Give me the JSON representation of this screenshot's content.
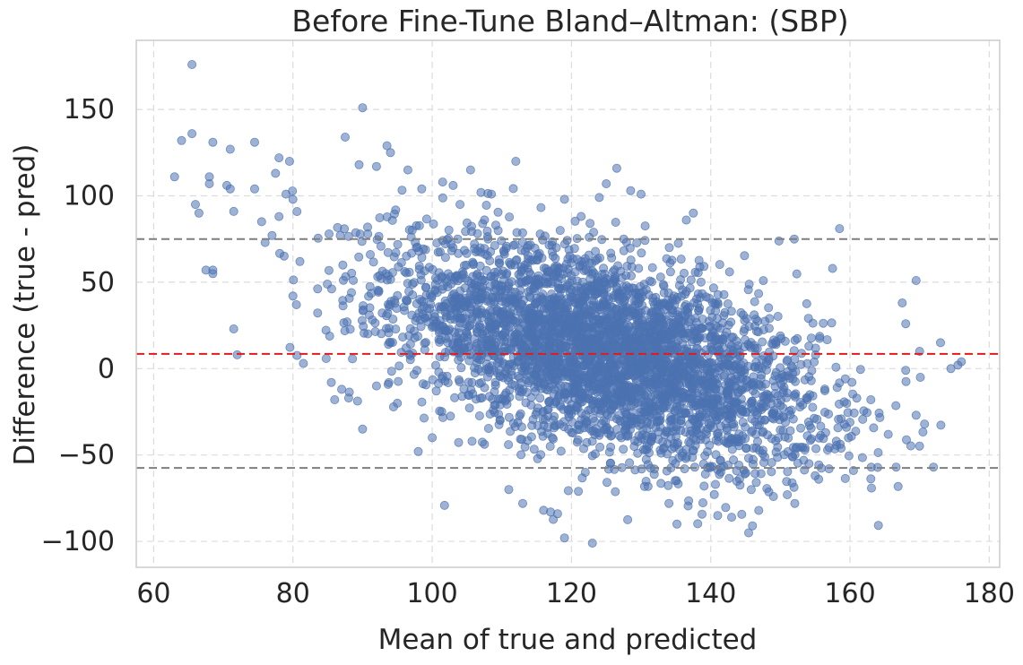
{
  "chart_data": {
    "type": "scatter",
    "title": "Before Fine-Tune Bland–Altman: (SBP)",
    "xlabel": "Mean of true and predicted",
    "ylabel": "Difference (true - pred)",
    "xlim": [
      57.5,
      181.5
    ],
    "ylim": [
      -115,
      190
    ],
    "xticks": [
      60,
      80,
      100,
      120,
      140,
      160,
      180
    ],
    "yticks": [
      -100,
      -50,
      0,
      50,
      100,
      150
    ],
    "xtick_labels": [
      "60",
      "80",
      "100",
      "120",
      "140",
      "160",
      "180"
    ],
    "ytick_labels": [
      "−100",
      "−50",
      "0",
      "50",
      "100",
      "150"
    ],
    "grid": true,
    "reference_lines": [
      {
        "name": "mean-bias",
        "y": 8.5,
        "color": "#e31a1c",
        "style": "dashed"
      },
      {
        "name": "upper-limit-of-agreement",
        "y": 75,
        "color": "#7f7f7f",
        "style": "dashed"
      },
      {
        "name": "lower-limit-of-agreement",
        "y": -57.5,
        "color": "#7f7f7f",
        "style": "dashed"
      }
    ],
    "series": [
      {
        "name": "samples",
        "color": "#4c72b0",
        "opacity": 0.55,
        "n_points": 4000,
        "dense_cloud": {
          "center_x": 125,
          "center_y": 8.5,
          "spread_x": 15,
          "spread_y": 27,
          "slope": -1.1
        },
        "outlier_points": [
          [
            65.5,
            176
          ],
          [
            64,
            132
          ],
          [
            65.5,
            136
          ],
          [
            68.5,
            131
          ],
          [
            63,
            111
          ],
          [
            66,
            95
          ],
          [
            66.5,
            90
          ],
          [
            68,
            107
          ],
          [
            68,
            111
          ],
          [
            70.5,
            106
          ],
          [
            71,
            104
          ],
          [
            71.5,
            91
          ],
          [
            71,
            127
          ],
          [
            74.5,
            131
          ],
          [
            74.5,
            104
          ],
          [
            75.5,
            85
          ],
          [
            76,
            73
          ],
          [
            77,
            77
          ],
          [
            77.5,
            113
          ],
          [
            78,
            122
          ],
          [
            78,
            88
          ],
          [
            79.5,
            120
          ],
          [
            79,
            101
          ],
          [
            80,
            98
          ],
          [
            80,
            42
          ],
          [
            80.5,
            37
          ],
          [
            81,
            62
          ],
          [
            81.5,
            3
          ],
          [
            71.5,
            23
          ],
          [
            72,
            8
          ],
          [
            67.5,
            57
          ],
          [
            68.5,
            57
          ],
          [
            68.5,
            55
          ],
          [
            90,
            151
          ],
          [
            87.5,
            134
          ],
          [
            93.5,
            129
          ],
          [
            92,
            117
          ],
          [
            94,
            125
          ],
          [
            96.5,
            115
          ],
          [
            89.5,
            118
          ],
          [
            98.5,
            104
          ],
          [
            101.5,
            108
          ],
          [
            103,
            106
          ],
          [
            104,
            95
          ],
          [
            105.5,
            115
          ],
          [
            107,
            102
          ],
          [
            108.5,
            101
          ],
          [
            112,
            120
          ],
          [
            119,
            98
          ],
          [
            124,
            99
          ],
          [
            125,
            107
          ],
          [
            126.5,
            116
          ],
          [
            128.5,
            103
          ],
          [
            130,
            101
          ],
          [
            136.5,
            86
          ],
          [
            137.5,
            90
          ],
          [
            152,
            75
          ],
          [
            158.5,
            81
          ],
          [
            157.5,
            58
          ],
          [
            169.5,
            51
          ],
          [
            173,
            15
          ],
          [
            174.5,
            0
          ],
          [
            175.5,
            2
          ],
          [
            176,
            4
          ],
          [
            169.5,
            -27
          ],
          [
            172,
            -57
          ],
          [
            160.5,
            -59
          ],
          [
            165.5,
            -38
          ],
          [
            163,
            -18
          ],
          [
            168,
            -1
          ],
          [
            170,
            10
          ],
          [
            167.5,
            38
          ],
          [
            168,
            26
          ],
          [
            160,
            -31
          ],
          [
            92,
            -10
          ],
          [
            95,
            -20
          ],
          [
            98,
            -48
          ],
          [
            100,
            -40
          ],
          [
            90,
            -35
          ],
          [
            87,
            -12
          ],
          [
            86,
            -18
          ],
          [
            88,
            -17
          ],
          [
            85.5,
            -8
          ],
          [
            111,
            -70
          ],
          [
            113,
            -78
          ],
          [
            116,
            -82
          ],
          [
            117,
            -83
          ],
          [
            119,
            -98
          ],
          [
            123,
            -101
          ],
          [
            118,
            -84
          ],
          [
            121,
            -71
          ],
          [
            134,
            -78
          ],
          [
            141,
            -85
          ],
          [
            143,
            -86
          ],
          [
            146,
            -91
          ],
          [
            149,
            -74
          ],
          [
            151,
            -73
          ],
          [
            155,
            -62
          ],
          [
            155.5,
            -64
          ],
          [
            157,
            -58
          ]
        ]
      }
    ]
  }
}
